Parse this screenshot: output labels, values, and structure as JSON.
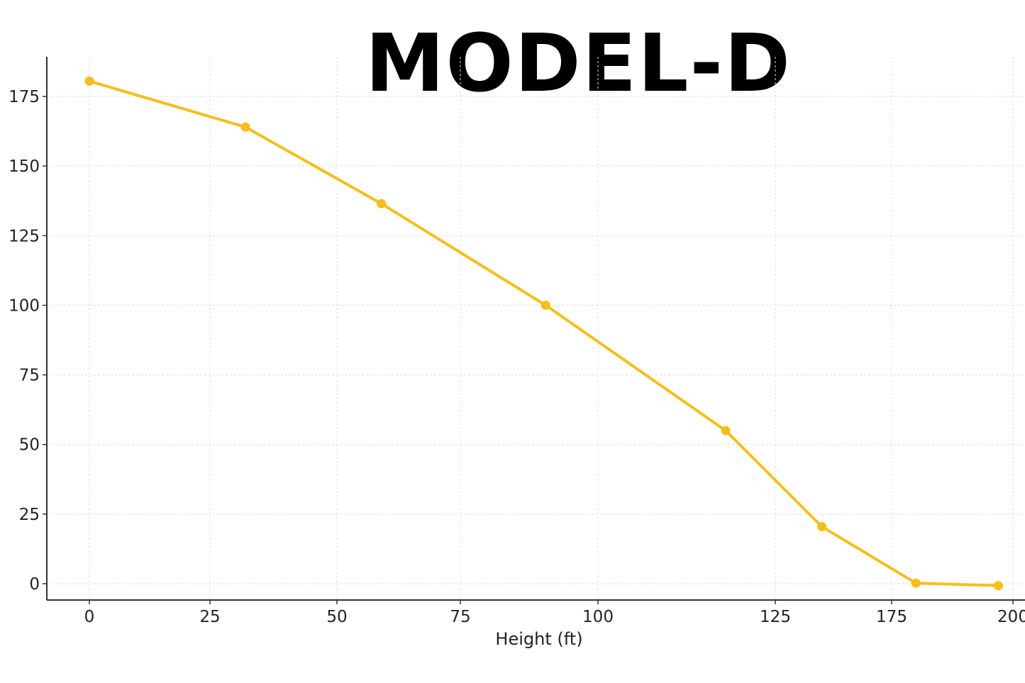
{
  "chart_data": {
    "type": "line",
    "title": "MODEL-D",
    "xlabel": "Height (ft)",
    "ylabel": "",
    "x_tick_labels": [
      "0",
      "25",
      "50",
      "75",
      "100",
      "125",
      "175",
      "200"
    ],
    "y_tick_labels": [
      "0",
      "25",
      "50",
      "75",
      "100",
      "125",
      "150",
      "175"
    ],
    "y_ticks": [
      0,
      25,
      50,
      75,
      100,
      125,
      150,
      175
    ],
    "ylim": [
      -6,
      190
    ],
    "grid": true,
    "series": [
      {
        "color": "#F5BE1B",
        "points": [
          {
            "x": 0,
            "y": 180.5
          },
          {
            "x": 32,
            "y": 164
          },
          {
            "x": 59,
            "y": 136.5
          },
          {
            "x": 90.5,
            "y": 100
          },
          {
            "x": 118,
            "y": 55
          },
          {
            "x": 145,
            "y": 20.5
          },
          {
            "x": 180,
            "y": 0.2
          },
          {
            "x": 197,
            "y": -0.7
          }
        ]
      }
    ]
  }
}
